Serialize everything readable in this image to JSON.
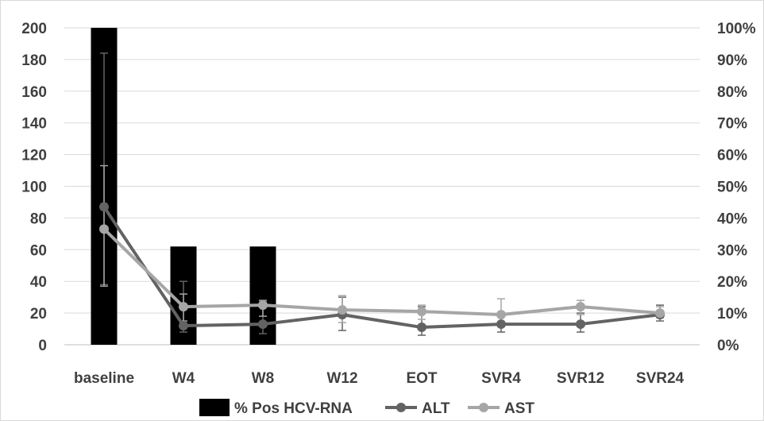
{
  "chart_data": {
    "type": "bar",
    "categories": [
      "baseline",
      "W4",
      "W8",
      "W12",
      "EOT",
      "SVR4",
      "SVR12",
      "SVR24"
    ],
    "left_axis": {
      "ylim": [
        0,
        200
      ],
      "ticks": [
        "0",
        "20",
        "40",
        "60",
        "80",
        "100",
        "120",
        "140",
        "160",
        "180",
        "200"
      ]
    },
    "right_axis": {
      "ylim": [
        0,
        100
      ],
      "ticks": [
        "0%",
        "10%",
        "20%",
        "30%",
        "40%",
        "50%",
        "60%",
        "70%",
        "80%",
        "90%",
        "100%"
      ]
    },
    "grid": true,
    "legend_position": "bottom",
    "series": [
      {
        "name": "% Pos HCV-RNA",
        "type": "bar",
        "axis": "right",
        "color": "#000000",
        "values": [
          100,
          31,
          31,
          0,
          0,
          0,
          0,
          0
        ]
      },
      {
        "name": "ALT",
        "type": "line",
        "axis": "left",
        "color": "#636363",
        "values": [
          87,
          12,
          13,
          19,
          11,
          13,
          13,
          19
        ],
        "error_low": [
          38,
          8,
          7,
          9,
          6,
          8,
          8,
          15
        ],
        "error_high": [
          184,
          40,
          27,
          30,
          24,
          18,
          20,
          25
        ]
      },
      {
        "name": "AST",
        "type": "line",
        "axis": "left",
        "color": "#a6a6a6",
        "values": [
          73,
          24,
          25,
          22,
          21,
          19,
          24,
          20
        ],
        "error_low": [
          37,
          15,
          18,
          14,
          16,
          12,
          19,
          17
        ],
        "error_high": [
          113,
          32,
          28,
          31,
          25,
          29,
          28,
          24
        ]
      }
    ]
  }
}
